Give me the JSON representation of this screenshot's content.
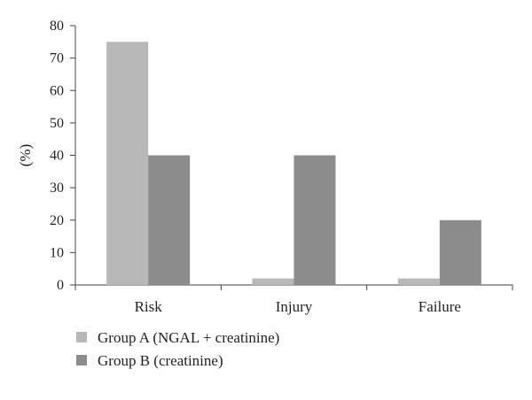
{
  "chart_data": {
    "type": "bar",
    "title": "",
    "xlabel": "",
    "ylabel": "(%)",
    "ylim": [
      0,
      80
    ],
    "yticks": [
      0,
      10,
      20,
      30,
      40,
      50,
      60,
      70,
      80
    ],
    "categories": [
      "Risk",
      "Injury",
      "Failure"
    ],
    "series": [
      {
        "name": "Group A (NGAL + creatinine)",
        "values": [
          75,
          2,
          2
        ],
        "color": "#b8b8b8"
      },
      {
        "name": "Group B (creatinine)",
        "values": [
          40,
          40,
          20
        ],
        "color": "#8c8c8c"
      }
    ],
    "grid": false,
    "legend_position": "bottom-left",
    "axis_color": "#444444"
  }
}
